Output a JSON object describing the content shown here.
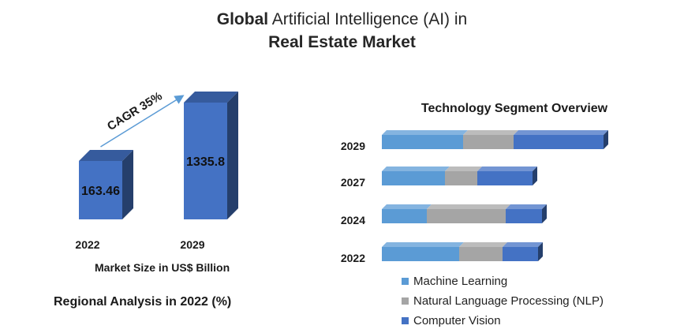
{
  "title": {
    "bold_part": "Global",
    "plain_part": " Artificial Intelligence (AI) in",
    "line2": "Real Estate Market"
  },
  "colors": {
    "bar_blue": "#4472c4",
    "ml_blue": "#5b9bd5",
    "nlp_gray": "#a5a5a5",
    "cv_blue": "#4472c4",
    "arrow": "#5b9bd5"
  },
  "market_caption": "Market Size in US$ Billion",
  "regional_caption": "Regional Analysis in 2022 (%)",
  "chart_data": [
    {
      "type": "bar",
      "categories": [
        "2022",
        "2029"
      ],
      "values": [
        163.46,
        1335.8
      ],
      "value_labels": [
        "163.46",
        "1335.8"
      ],
      "xlabel": "Market Size in US$ Billion",
      "annotation": "CAGR 35%"
    },
    {
      "type": "bar",
      "orientation": "horizontal",
      "stacked": true,
      "title": "Technology Segment Overview",
      "categories": [
        "2029",
        "2027",
        "2024",
        "2022"
      ],
      "series": [
        {
          "name": "Machine Learning",
          "color": "#5b9bd5",
          "values": [
            103,
            80,
            57,
            98
          ]
        },
        {
          "name": "Natural Language Processing (NLP)",
          "color": "#a5a5a5",
          "values": [
            64,
            41,
            100,
            55
          ]
        },
        {
          "name": "Computer Vision",
          "color": "#4472c4",
          "values": [
            114,
            70,
            46,
            45
          ]
        }
      ]
    }
  ]
}
